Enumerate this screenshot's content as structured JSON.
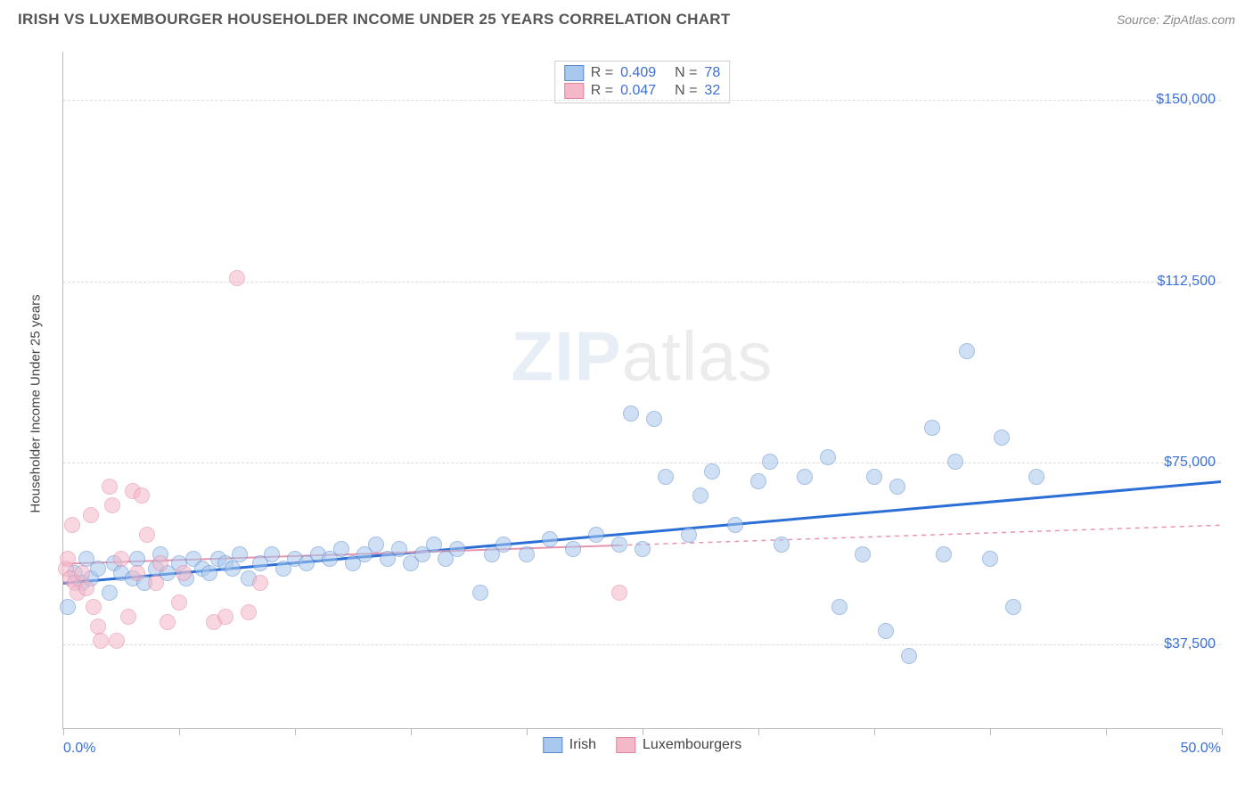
{
  "header": {
    "title": "IRISH VS LUXEMBOURGER HOUSEHOLDER INCOME UNDER 25 YEARS CORRELATION CHART",
    "source": "Source: ZipAtlas.com"
  },
  "watermark": {
    "bold": "ZIP",
    "thin": "atlas"
  },
  "chart": {
    "type": "scatter",
    "ylabel": "Householder Income Under 25 years",
    "xlim": [
      0,
      50
    ],
    "ylim": [
      20000,
      160000
    ],
    "x_ticks": [
      0,
      5,
      10,
      15,
      20,
      25,
      30,
      35,
      40,
      45,
      50
    ],
    "y_gridlines": [
      37500,
      75000,
      112500,
      150000
    ],
    "y_tick_labels": [
      "$37,500",
      "$75,000",
      "$112,500",
      "$150,000"
    ],
    "x_min_label": "0.0%",
    "x_max_label": "50.0%",
    "background_color": "#ffffff",
    "grid_color": "#dcdcdc",
    "axis_color": "#bbbbbb",
    "point_radius": 9,
    "point_opacity": 0.55,
    "series": [
      {
        "name": "Irish",
        "fill": "#a8c8ed",
        "stroke": "#5a8bd0",
        "R": "0.409",
        "N": "78",
        "trend": {
          "y_at_xmin": 50000,
          "y_at_xmax": 71000,
          "color": "#2b6fd6",
          "width": 3,
          "dash": ""
        },
        "points": [
          [
            0.2,
            45000
          ],
          [
            0.5,
            52000
          ],
          [
            0.8,
            50000
          ],
          [
            1.0,
            55000
          ],
          [
            1.2,
            51000
          ],
          [
            1.5,
            53000
          ],
          [
            2.0,
            48000
          ],
          [
            2.2,
            54000
          ],
          [
            2.5,
            52000
          ],
          [
            3.0,
            51000
          ],
          [
            3.2,
            55000
          ],
          [
            3.5,
            50000
          ],
          [
            4.0,
            53000
          ],
          [
            4.2,
            56000
          ],
          [
            4.5,
            52000
          ],
          [
            5.0,
            54000
          ],
          [
            5.3,
            51000
          ],
          [
            5.6,
            55000
          ],
          [
            6.0,
            53000
          ],
          [
            6.3,
            52000
          ],
          [
            6.7,
            55000
          ],
          [
            7.0,
            54000
          ],
          [
            7.3,
            53000
          ],
          [
            7.6,
            56000
          ],
          [
            8.0,
            51000
          ],
          [
            8.5,
            54000
          ],
          [
            9.0,
            56000
          ],
          [
            9.5,
            53000
          ],
          [
            10.0,
            55000
          ],
          [
            10.5,
            54000
          ],
          [
            11.0,
            56000
          ],
          [
            11.5,
            55000
          ],
          [
            12.0,
            57000
          ],
          [
            12.5,
            54000
          ],
          [
            13.0,
            56000
          ],
          [
            13.5,
            58000
          ],
          [
            14.0,
            55000
          ],
          [
            14.5,
            57000
          ],
          [
            15.0,
            54000
          ],
          [
            15.5,
            56000
          ],
          [
            16.0,
            58000
          ],
          [
            16.5,
            55000
          ],
          [
            17.0,
            57000
          ],
          [
            18.0,
            48000
          ],
          [
            18.5,
            56000
          ],
          [
            19.0,
            58000
          ],
          [
            20.0,
            56000
          ],
          [
            21.0,
            59000
          ],
          [
            22.0,
            57000
          ],
          [
            23.0,
            60000
          ],
          [
            24.0,
            58000
          ],
          [
            24.5,
            85000
          ],
          [
            25.0,
            57000
          ],
          [
            25.5,
            84000
          ],
          [
            26.0,
            72000
          ],
          [
            27.0,
            60000
          ],
          [
            27.5,
            68000
          ],
          [
            28.0,
            73000
          ],
          [
            29.0,
            62000
          ],
          [
            30.0,
            71000
          ],
          [
            30.5,
            75000
          ],
          [
            31.0,
            58000
          ],
          [
            32.0,
            72000
          ],
          [
            33.0,
            76000
          ],
          [
            33.5,
            45000
          ],
          [
            34.5,
            56000
          ],
          [
            35.0,
            72000
          ],
          [
            35.5,
            40000
          ],
          [
            36.0,
            70000
          ],
          [
            36.5,
            35000
          ],
          [
            37.5,
            82000
          ],
          [
            38.0,
            56000
          ],
          [
            38.5,
            75000
          ],
          [
            39.0,
            98000
          ],
          [
            40.0,
            55000
          ],
          [
            40.5,
            80000
          ],
          [
            41.0,
            45000
          ],
          [
            42.0,
            72000
          ]
        ]
      },
      {
        "name": "Luxembourgers",
        "fill": "#f5b8c9",
        "stroke": "#e184a3",
        "R": "0.047",
        "N": "32",
        "trend": {
          "y_at_xmin": 54000,
          "y_at_xmax": 62000,
          "color": "#e596ae",
          "width": 1.5,
          "dash": "5,5"
        },
        "trend_solid_until": 24,
        "points": [
          [
            0.1,
            53000
          ],
          [
            0.2,
            55000
          ],
          [
            0.3,
            51000
          ],
          [
            0.4,
            62000
          ],
          [
            0.5,
            50000
          ],
          [
            0.6,
            48000
          ],
          [
            0.8,
            52000
          ],
          [
            1.0,
            49000
          ],
          [
            1.2,
            64000
          ],
          [
            1.3,
            45000
          ],
          [
            1.5,
            41000
          ],
          [
            1.6,
            38000
          ],
          [
            2.0,
            70000
          ],
          [
            2.1,
            66000
          ],
          [
            2.3,
            38000
          ],
          [
            2.5,
            55000
          ],
          [
            2.8,
            43000
          ],
          [
            3.0,
            69000
          ],
          [
            3.2,
            52000
          ],
          [
            3.4,
            68000
          ],
          [
            3.6,
            60000
          ],
          [
            4.0,
            50000
          ],
          [
            4.2,
            54000
          ],
          [
            4.5,
            42000
          ],
          [
            5.0,
            46000
          ],
          [
            5.2,
            52000
          ],
          [
            6.5,
            42000
          ],
          [
            7.0,
            43000
          ],
          [
            8.0,
            44000
          ],
          [
            7.5,
            113000
          ],
          [
            8.5,
            50000
          ],
          [
            24.0,
            48000
          ]
        ]
      }
    ],
    "stats_box": {
      "R_label": "R =",
      "N_label": "N ="
    },
    "legend": [
      {
        "label": "Irish",
        "fill": "#a8c8ed",
        "stroke": "#5a8bd0"
      },
      {
        "label": "Luxembourgers",
        "fill": "#f5b8c9",
        "stroke": "#e184a3"
      }
    ]
  }
}
